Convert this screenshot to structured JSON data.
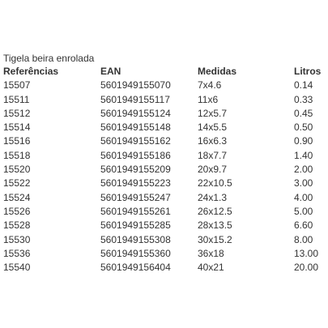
{
  "title": "Tigela beira enrolada",
  "table": {
    "headers": [
      "Referências",
      "EAN",
      "Medidas",
      "Litros"
    ],
    "rows": [
      [
        "15507",
        "5601949155070",
        "7x4.6",
        "0.14"
      ],
      [
        "15511",
        "5601949155117",
        "11x6",
        "0.33"
      ],
      [
        "15512",
        "5601949155124",
        "12x5.7",
        "0.45"
      ],
      [
        "15514",
        "5601949155148",
        "14x5.5",
        "0.50"
      ],
      [
        "15516",
        "5601949155162",
        "16x6.3",
        "0.90"
      ],
      [
        "15518",
        "5601949155186",
        "18x7.7",
        "1.40"
      ],
      [
        "15520",
        "5601949155209",
        "20x9.7",
        "2.00"
      ],
      [
        "15522",
        "5601949155223",
        "22x10.5",
        "3.00"
      ],
      [
        "15524",
        "5601949155247",
        "24x1.3",
        "4.00"
      ],
      [
        "15526",
        "5601949155261",
        "26x12.5",
        "5.00"
      ],
      [
        "15528",
        "5601949155285",
        "28x13.5",
        "6.60"
      ],
      [
        "15530",
        "5601949155308",
        "30x15.2",
        "8.00"
      ],
      [
        "15536",
        "5601949155360",
        "36x18",
        "13.00"
      ],
      [
        "15540",
        "5601949156404",
        "40x21",
        "20.00"
      ]
    ]
  }
}
